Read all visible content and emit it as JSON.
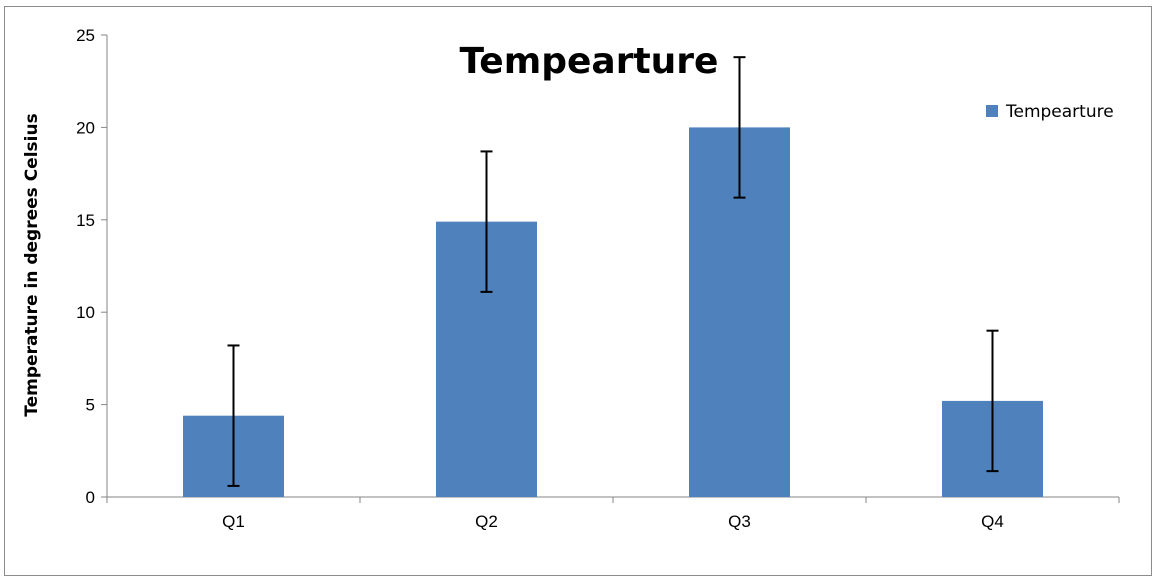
{
  "chart_data": {
    "type": "bar",
    "title": "Tempearture",
    "ylabel": "Temperature in degrees Celsius",
    "xlabel": "",
    "categories": [
      "Q1",
      "Q2",
      "Q3",
      "Q4"
    ],
    "series": [
      {
        "name": "Tempearture",
        "values": [
          4.4,
          14.9,
          20.0,
          5.2
        ],
        "error": [
          3.8,
          3.8,
          3.8,
          3.8
        ],
        "color": "#4f81bd"
      }
    ],
    "ylim": [
      0,
      25
    ],
    "yticks": [
      "0",
      "5",
      "10",
      "15",
      "20",
      "25"
    ],
    "grid": false,
    "legend_position": "right",
    "error_bar_color": "#000000",
    "axis_color": "#868686"
  }
}
